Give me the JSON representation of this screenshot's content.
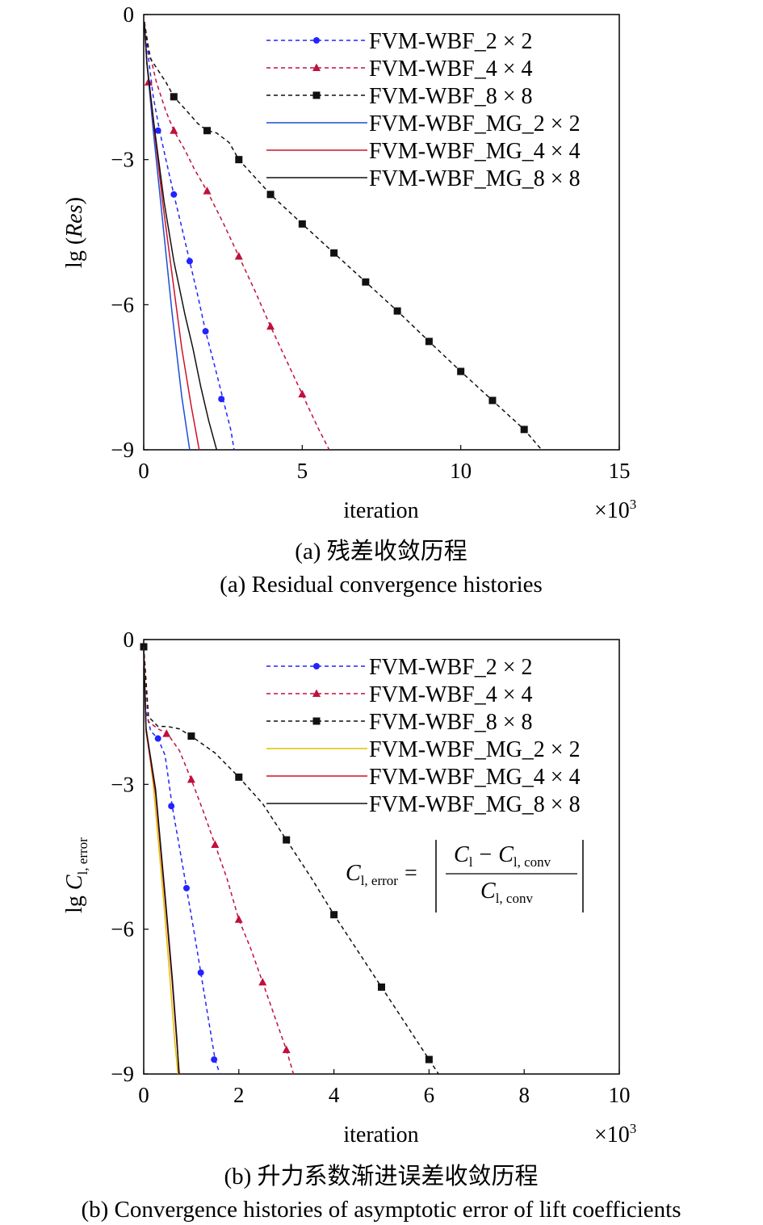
{
  "chart_data": [
    {
      "type": "line",
      "caption_cn": "(a) 残差收敛历程",
      "caption_en": "(a) Residual convergence histories",
      "xlabel": "iteration",
      "x_multiplier": "×10",
      "x_multiplier_exp": "3",
      "ylabel_prefix": "lg (",
      "ylabel_var": "Res",
      "ylabel_suffix": ")",
      "xlim": [
        0,
        15
      ],
      "ylim": [
        -9,
        0
      ],
      "x_ticks": [
        0,
        5,
        10,
        15
      ],
      "x_tick_labels": [
        "0",
        "5",
        "10",
        "15"
      ],
      "y_ticks": [
        0,
        -3,
        -6,
        -9
      ],
      "y_tick_labels": [
        "0",
        "−3",
        "−6",
        "−9"
      ],
      "legend_position": "top-right",
      "series": [
        {
          "name": "FVM-WBF_2 × 2",
          "color": "#2323ff",
          "dash": "5,4",
          "marker": "circle",
          "x": [
            0.02,
            0.15,
            0.3,
            0.5,
            0.7,
            0.95,
            1.2,
            1.45,
            1.7,
            1.95,
            2.25,
            2.5,
            2.75,
            2.85
          ],
          "y": [
            -0.15,
            -0.9,
            -1.7,
            -2.4,
            -3.0,
            -3.72,
            -4.4,
            -5.1,
            -5.8,
            -6.55,
            -7.3,
            -7.95,
            -8.6,
            -9.0
          ],
          "mx": [
            0.45,
            0.95,
            1.45,
            1.95,
            2.45
          ],
          "my": [
            -2.4,
            -3.72,
            -5.1,
            -6.55,
            -7.95
          ]
        },
        {
          "name": "FVM-WBF_4 × 4",
          "color": "#c0103c",
          "dash": "5,4",
          "marker": "triangle",
          "x": [
            0.02,
            0.15,
            0.4,
            0.7,
            0.95,
            1.3,
            1.6,
            2.0,
            2.5,
            3.0,
            3.5,
            4.0,
            4.5,
            5.0,
            5.5,
            5.85
          ],
          "y": [
            -0.15,
            -0.7,
            -1.4,
            -2.0,
            -2.4,
            -2.8,
            -3.2,
            -3.65,
            -4.3,
            -5.0,
            -5.7,
            -6.45,
            -7.15,
            -7.85,
            -8.55,
            -9.0
          ],
          "mx": [
            0.15,
            0.95,
            2.0,
            3.0,
            4.0,
            5.0
          ],
          "my": [
            -1.4,
            -2.4,
            -3.65,
            -5.0,
            -6.45,
            -7.85
          ]
        },
        {
          "name": "FVM-WBF_8 × 8",
          "color": "#111111",
          "dash": "5,4",
          "marker": "square",
          "x": [
            0.02,
            0.2,
            0.4,
            0.7,
            0.95,
            1.3,
            1.7,
            2.0,
            2.3,
            2.7,
            3.0,
            4.0,
            5.0,
            6.0,
            7.0,
            8.0,
            9.0,
            10.0,
            11.0,
            12.0,
            12.55
          ],
          "y": [
            -0.15,
            -0.9,
            -1.1,
            -1.4,
            -1.7,
            -1.95,
            -2.25,
            -2.4,
            -2.45,
            -2.65,
            -3.0,
            -3.72,
            -4.33,
            -4.93,
            -5.53,
            -6.13,
            -6.76,
            -7.38,
            -7.98,
            -8.58,
            -9.0
          ],
          "mx": [
            0.95,
            2.0,
            3.0,
            4.0,
            5.0,
            6.0,
            7.0,
            8.0,
            9.0,
            10.0,
            11.0,
            12.0
          ],
          "my": [
            -1.7,
            -2.4,
            -3.0,
            -3.72,
            -4.33,
            -4.93,
            -5.53,
            -6.13,
            -6.76,
            -7.38,
            -7.98,
            -8.58
          ]
        },
        {
          "name": "FVM-WBF_MG_2 × 2",
          "color": "#1a4fd6",
          "dash": "",
          "marker": "none",
          "x": [
            0.02,
            0.1,
            0.3,
            0.6,
            0.9,
            1.2,
            1.45
          ],
          "y": [
            -0.15,
            -1.0,
            -2.4,
            -4.3,
            -6.2,
            -7.9,
            -9.0
          ]
        },
        {
          "name": "FVM-WBF_MG_4 × 4",
          "color": "#d0102a",
          "dash": "",
          "marker": "none",
          "x": [
            0.02,
            0.1,
            0.3,
            0.6,
            0.9,
            1.2,
            1.5,
            1.75
          ],
          "y": [
            -0.15,
            -1.0,
            -2.2,
            -3.9,
            -5.4,
            -6.9,
            -8.1,
            -9.0
          ]
        },
        {
          "name": "FVM-WBF_MG_8 × 8",
          "color": "#111111",
          "dash": "",
          "marker": "none",
          "x": [
            0.02,
            0.1,
            0.35,
            0.65,
            0.95,
            1.3,
            1.55,
            1.8,
            2.05,
            2.3
          ],
          "y": [
            -0.15,
            -1.0,
            -2.4,
            -3.9,
            -5.1,
            -6.2,
            -6.9,
            -7.7,
            -8.4,
            -9.0
          ]
        }
      ]
    },
    {
      "type": "line",
      "caption_cn": "(b) 升力系数渐进误差收敛历程",
      "caption_en": "(b) Convergence histories of asymptotic error of lift coefficients",
      "xlabel": "iteration",
      "x_multiplier": "×10",
      "x_multiplier_exp": "3",
      "ylabel_prefix": "lg ",
      "ylabel_var": "C",
      "ylabel_sub": "l, error",
      "xlim": [
        0,
        10
      ],
      "ylim": [
        -9,
        0
      ],
      "x_ticks": [
        0,
        2,
        4,
        6,
        8,
        10
      ],
      "x_tick_labels": [
        "0",
        "2",
        "4",
        "6",
        "8",
        "10"
      ],
      "y_ticks": [
        0,
        -3,
        -6,
        -9
      ],
      "y_tick_labels": [
        "0",
        "−3",
        "−6",
        "−9"
      ],
      "legend_position": "top-right",
      "formula": {
        "lhs_var": "C",
        "lhs_sub": "l, error",
        "equals": "=",
        "num_a_var": "C",
        "num_a_sub": "l",
        "minus": "−",
        "num_b_var": "C",
        "num_b_sub": "l, conv",
        "den_var": "C",
        "den_sub": "l, conv"
      },
      "series": [
        {
          "name": "FVM-WBF_2 × 2",
          "color": "#2323ff",
          "dash": "5,4",
          "marker": "circle",
          "x": [
            0.0,
            0.05,
            0.15,
            0.3,
            0.45,
            0.6,
            0.75,
            0.9,
            1.05,
            1.2,
            1.35,
            1.5,
            1.6
          ],
          "y": [
            -0.15,
            -1.5,
            -1.9,
            -2.05,
            -2.4,
            -3.45,
            -4.3,
            -5.15,
            -6.0,
            -6.9,
            -7.8,
            -8.7,
            -9.0
          ],
          "mx": [
            0.3,
            0.58,
            0.9,
            1.2,
            1.48
          ],
          "my": [
            -2.05,
            -3.45,
            -5.15,
            -6.9,
            -8.7
          ]
        },
        {
          "name": "FVM-WBF_4 × 4",
          "color": "#c0103c",
          "dash": "5,4",
          "marker": "triangle",
          "x": [
            0.0,
            0.1,
            0.3,
            0.5,
            0.75,
            1.0,
            1.25,
            1.5,
            1.75,
            2.0,
            2.25,
            2.5,
            2.75,
            3.0,
            3.15
          ],
          "y": [
            -0.15,
            -1.7,
            -1.85,
            -1.95,
            -2.3,
            -2.9,
            -3.55,
            -4.25,
            -4.95,
            -5.8,
            -6.4,
            -7.1,
            -7.8,
            -8.5,
            -9.0
          ],
          "mx": [
            0.48,
            1.0,
            1.5,
            2.0,
            2.5,
            3.0
          ],
          "my": [
            -1.95,
            -2.9,
            -4.25,
            -5.8,
            -7.1,
            -8.5
          ]
        },
        {
          "name": "FVM-WBF_8 × 8",
          "color": "#111111",
          "dash": "5,4",
          "marker": "square",
          "x": [
            0.0,
            0.1,
            0.3,
            0.5,
            0.75,
            1.0,
            1.5,
            2.0,
            2.5,
            3.0,
            3.5,
            4.0,
            4.5,
            5.0,
            5.5,
            6.0,
            6.2
          ],
          "y": [
            -0.15,
            -1.6,
            -1.8,
            -1.8,
            -1.85,
            -2.0,
            -2.35,
            -2.85,
            -3.4,
            -4.15,
            -4.9,
            -5.7,
            -6.45,
            -7.2,
            -7.95,
            -8.7,
            -9.0
          ],
          "mx": [
            0.0,
            1.0,
            2.0,
            3.0,
            4.0,
            5.0,
            6.0
          ],
          "my": [
            -0.15,
            -2.0,
            -2.85,
            -4.15,
            -5.7,
            -7.2,
            -8.7
          ]
        },
        {
          "name": "FVM-WBF_MG_2 × 2",
          "color": "#e0c000",
          "dash": "",
          "marker": "none",
          "x": [
            0.0,
            0.05,
            0.2,
            0.4,
            0.55,
            0.65,
            0.72
          ],
          "y": [
            -0.15,
            -1.8,
            -3.0,
            -5.2,
            -7.0,
            -8.3,
            -9.0
          ]
        },
        {
          "name": "FVM-WBF_MG_4 × 4",
          "color": "#d0102a",
          "dash": "",
          "marker": "none",
          "x": [
            0.0,
            0.05,
            0.25,
            0.45,
            0.6,
            0.7,
            0.75
          ],
          "y": [
            -0.15,
            -1.9,
            -3.2,
            -5.4,
            -7.1,
            -8.4,
            -9.0
          ]
        },
        {
          "name": "FVM-WBF_MG_8 × 8",
          "color": "#111111",
          "dash": "",
          "marker": "none",
          "x": [
            0.0,
            0.05,
            0.25,
            0.45,
            0.6,
            0.7,
            0.74
          ],
          "y": [
            -0.15,
            -1.85,
            -3.1,
            -5.3,
            -7.0,
            -8.3,
            -9.0
          ]
        }
      ]
    }
  ]
}
